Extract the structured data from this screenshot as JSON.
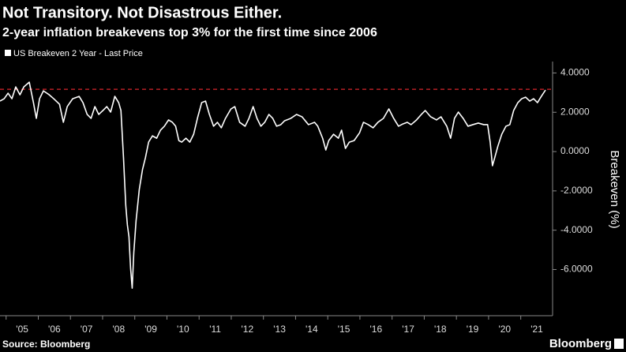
{
  "chart_data": {
    "type": "line",
    "title": "Not Transitory. Not Disastrous Either.",
    "subtitle": "2-year inflation breakevens top 3% for the first time since 2006",
    "y_label": "Breakeven (%)",
    "source": "Source: Bloomberg",
    "brand": "Bloomberg",
    "x": [
      2004.81,
      2004.94,
      2005.06,
      2005.18,
      2005.3,
      2005.43,
      2005.55,
      2005.72,
      2005.85,
      2005.94,
      2006.04,
      2006.16,
      2006.34,
      2006.48,
      2006.66,
      2006.78,
      2006.9,
      2007.07,
      2007.27,
      2007.39,
      2007.52,
      2007.64,
      2007.76,
      2007.88,
      2008.01,
      2008.13,
      2008.25,
      2008.38,
      2008.5,
      2008.57,
      2008.65,
      2008.72,
      2008.77,
      2008.82,
      2008.87,
      2008.92,
      2008.97,
      2009.04,
      2009.14,
      2009.24,
      2009.33,
      2009.43,
      2009.55,
      2009.68,
      2009.8,
      2009.92,
      2010.05,
      2010.17,
      2010.27,
      2010.37,
      2010.46,
      2010.59,
      2010.71,
      2010.83,
      2010.96,
      2011.08,
      2011.2,
      2011.32,
      2011.45,
      2011.57,
      2011.69,
      2011.82,
      2011.99,
      2012.11,
      2012.26,
      2012.43,
      2012.55,
      2012.68,
      2012.8,
      2012.92,
      2013.04,
      2013.17,
      2013.29,
      2013.41,
      2013.54,
      2013.66,
      2013.85,
      2014.03,
      2014.2,
      2014.4,
      2014.59,
      2014.69,
      2014.84,
      2014.94,
      2015.03,
      2015.18,
      2015.33,
      2015.43,
      2015.55,
      2015.67,
      2015.82,
      2015.99,
      2016.11,
      2016.26,
      2016.41,
      2016.56,
      2016.73,
      2016.9,
      2017.05,
      2017.2,
      2017.34,
      2017.47,
      2017.59,
      2017.76,
      2017.91,
      2018.03,
      2018.2,
      2018.38,
      2018.52,
      2018.7,
      2018.82,
      2018.94,
      2019.06,
      2019.21,
      2019.36,
      2019.51,
      2019.68,
      2019.85,
      2019.97,
      2020.05,
      2020.12,
      2020.19,
      2020.29,
      2020.41,
      2020.54,
      2020.66,
      2020.78,
      2020.91,
      2021.03,
      2021.15,
      2021.28,
      2021.4,
      2021.52,
      2021.64,
      2021.77
    ],
    "series": [
      {
        "name": "US Breakeven 2 Year - Last Price",
        "color": "#ffffff",
        "values": [
          2.57,
          2.69,
          2.97,
          2.69,
          3.29,
          2.89,
          3.29,
          3.53,
          2.49,
          1.69,
          2.69,
          3.09,
          2.89,
          2.69,
          2.41,
          1.49,
          2.29,
          2.69,
          2.81,
          2.49,
          1.89,
          1.69,
          2.29,
          1.89,
          2.09,
          2.29,
          2.01,
          2.81,
          2.49,
          2.09,
          -0.32,
          -2.73,
          -3.73,
          -4.34,
          -5.94,
          -6.95,
          -5.14,
          -3.53,
          -1.93,
          -0.92,
          -0.32,
          0.48,
          0.8,
          0.68,
          1.09,
          1.29,
          1.61,
          1.49,
          1.29,
          0.56,
          0.48,
          0.68,
          0.48,
          0.88,
          1.77,
          2.49,
          2.57,
          1.89,
          1.29,
          1.49,
          1.21,
          1.69,
          2.17,
          2.29,
          1.49,
          1.29,
          1.69,
          2.29,
          1.69,
          1.29,
          1.49,
          1.89,
          1.69,
          1.29,
          1.37,
          1.57,
          1.69,
          1.89,
          1.77,
          1.37,
          1.49,
          1.29,
          0.68,
          0.08,
          0.56,
          0.88,
          0.68,
          1.09,
          0.16,
          0.48,
          0.56,
          0.96,
          1.49,
          1.37,
          1.21,
          1.49,
          1.69,
          2.17,
          1.69,
          1.29,
          1.41,
          1.49,
          1.37,
          1.61,
          1.89,
          2.09,
          1.77,
          1.61,
          1.77,
          1.29,
          0.68,
          1.69,
          2.01,
          1.69,
          1.29,
          1.37,
          1.45,
          1.37,
          1.37,
          0.48,
          -0.72,
          -0.32,
          0.28,
          0.88,
          1.29,
          1.37,
          2.09,
          2.49,
          2.69,
          2.77,
          2.57,
          2.69,
          2.49,
          2.81,
          3.13
        ]
      }
    ],
    "reference_line": {
      "value": 3.17,
      "color": "#d9262c"
    },
    "xlim": [
      2004.81,
      2021.99
    ],
    "xticks": [
      {
        "value": 2005,
        "label": "'05"
      },
      {
        "value": 2006,
        "label": "'06"
      },
      {
        "value": 2007,
        "label": "'07"
      },
      {
        "value": 2008,
        "label": "'08"
      },
      {
        "value": 2009,
        "label": "'09"
      },
      {
        "value": 2010,
        "label": "'10"
      },
      {
        "value": 2011,
        "label": "'11"
      },
      {
        "value": 2012,
        "label": "'12"
      },
      {
        "value": 2013,
        "label": "'13"
      },
      {
        "value": 2014,
        "label": "'14"
      },
      {
        "value": 2015,
        "label": "'15"
      },
      {
        "value": 2016,
        "label": "'16"
      },
      {
        "value": 2017,
        "label": "'17"
      },
      {
        "value": 2018,
        "label": "'18"
      },
      {
        "value": 2019,
        "label": "'19"
      },
      {
        "value": 2020,
        "label": "'20"
      },
      {
        "value": 2021,
        "label": "'21"
      }
    ],
    "ylim": [
      -8.35,
      4.58
    ],
    "yticks": [
      {
        "value": 4,
        "label": "4.0000"
      },
      {
        "value": 2,
        "label": "2.0000"
      },
      {
        "value": 0,
        "label": "0.0000"
      },
      {
        "value": -2,
        "label": "-2.0000"
      },
      {
        "value": -4,
        "label": "-4.0000"
      },
      {
        "value": -6,
        "label": "-6.0000"
      }
    ],
    "grid": false
  }
}
